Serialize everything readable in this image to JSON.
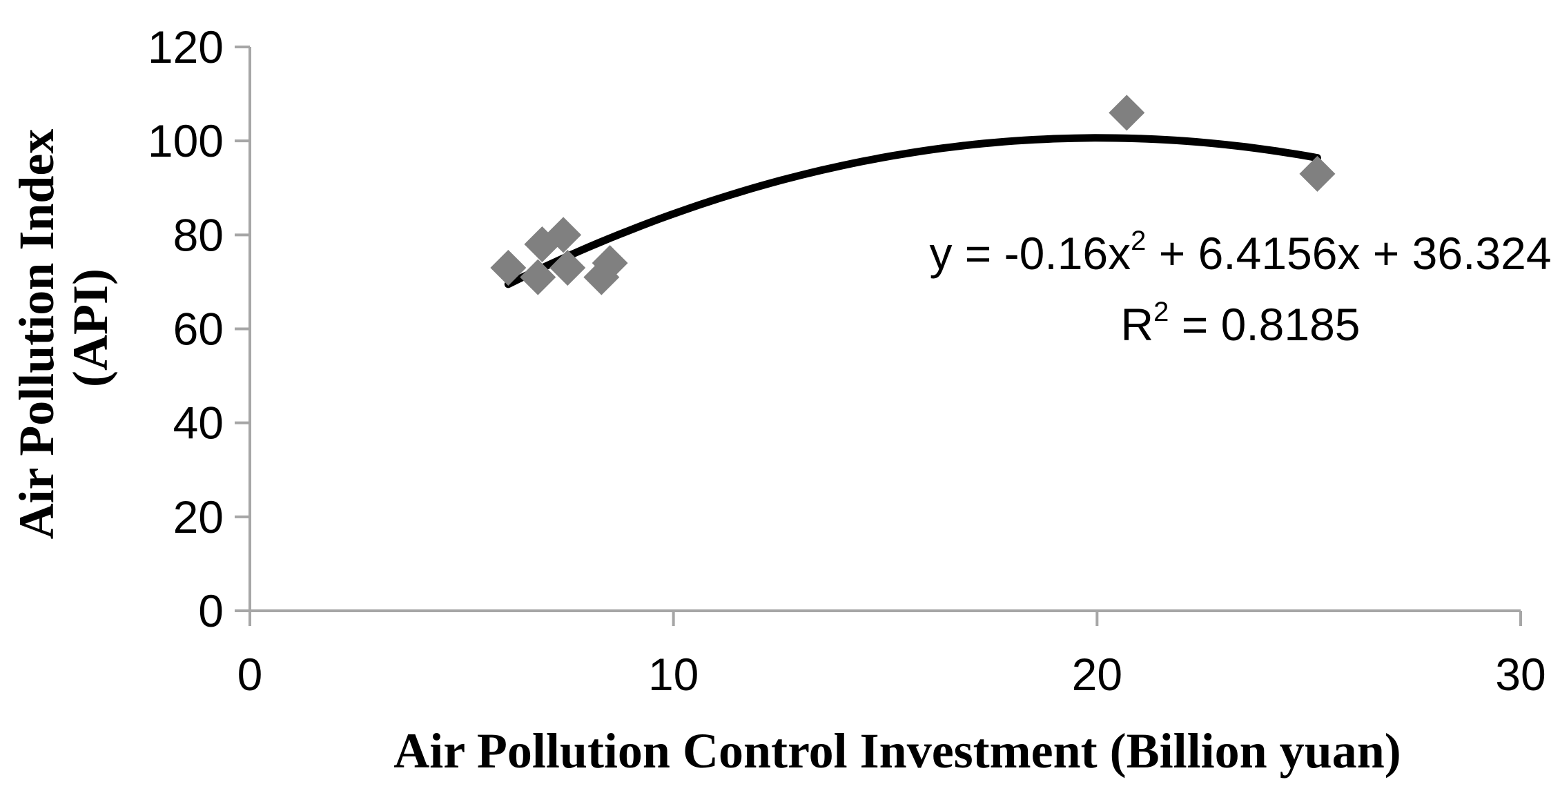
{
  "chart_data": {
    "type": "scatter",
    "title": "",
    "xlabel": "Air Pollution Control Investment (Billion yuan)",
    "ylabel_line1": "Air Pollution Index",
    "ylabel_line2": "(API)",
    "xlim": [
      0,
      30
    ],
    "ylim": [
      0,
      120
    ],
    "x_ticks": [
      0,
      10,
      20,
      30
    ],
    "y_ticks": [
      0,
      20,
      40,
      60,
      80,
      100,
      120
    ],
    "grid": false,
    "legend": "none",
    "points": [
      {
        "x": 6.1,
        "y": 73
      },
      {
        "x": 6.8,
        "y": 71
      },
      {
        "x": 6.9,
        "y": 78
      },
      {
        "x": 7.4,
        "y": 80
      },
      {
        "x": 7.5,
        "y": 73
      },
      {
        "x": 8.3,
        "y": 71
      },
      {
        "x": 8.5,
        "y": 74
      },
      {
        "x": 20.7,
        "y": 106
      },
      {
        "x": 25.2,
        "y": 93
      }
    ],
    "trendline": {
      "kind": "polynomial",
      "a": -0.16,
      "b": 6.4156,
      "c": 36.324,
      "x_start": 6.1,
      "x_end": 25.2
    },
    "equation": {
      "lhs": "y = -0.16x",
      "exp": "2",
      "rhs": " + 6.4156x + 36.324",
      "r_lhs": "R",
      "r_exp": "2",
      "r_rhs": " = 0.8185"
    },
    "colors": {
      "marker": "#808080",
      "trendline": "#000000",
      "axis": "#a6a6a6",
      "text": "#000000"
    }
  }
}
